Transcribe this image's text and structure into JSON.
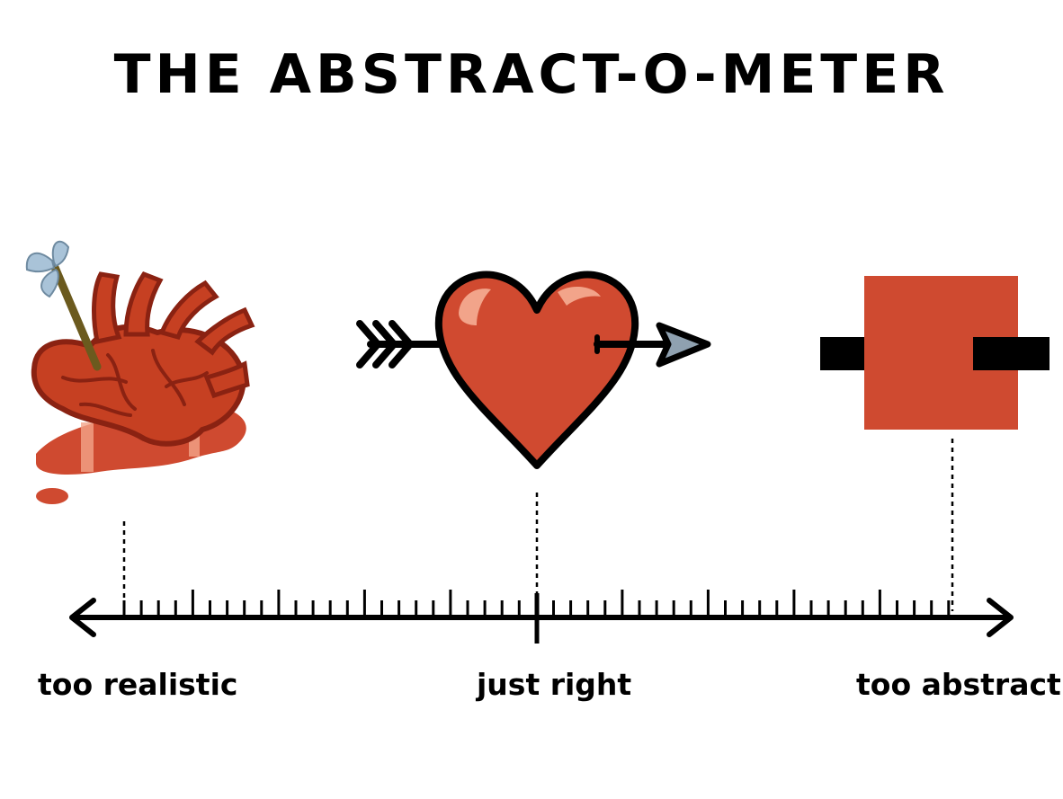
{
  "title": "THE ABSTRACT-O-METER",
  "scale": {
    "label_left": "too realistic",
    "label_middle": "just right",
    "label_right": "too abstract"
  },
  "icons": {
    "left": "realistic-heart-with-arrow-icon",
    "middle": "cartoon-heart-with-arrow-icon",
    "right": "abstract-square-heart-icon"
  },
  "colors": {
    "heart_red": "#cf4a30",
    "dark_red": "#8a2212",
    "highlight": "#f2a48a",
    "line": "#000000",
    "arrow_head": "#8fa1b0",
    "feather": "#a9c3d8"
  }
}
